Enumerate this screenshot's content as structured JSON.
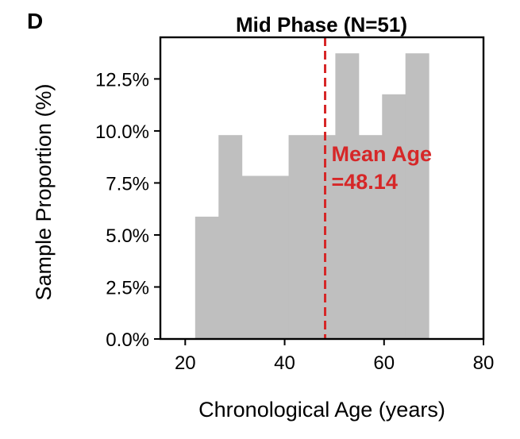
{
  "panel_label": "D",
  "chart_data": {
    "type": "histogram",
    "title": "Mid Phase (N=51)",
    "xlabel": "Chronological Age (years)",
    "ylabel": "Sample Proportion (%)",
    "xlim": [
      15,
      80
    ],
    "ylim": [
      0,
      14.5
    ],
    "x_ticks": [
      20,
      40,
      60,
      80
    ],
    "x_tick_labels": [
      "20",
      "40",
      "60",
      "80"
    ],
    "y_ticks": [
      0,
      2.5,
      5,
      7.5,
      10,
      12.5
    ],
    "y_tick_labels": [
      "0.0%",
      "2.5%",
      "5.0%",
      "7.5%",
      "10.0%",
      "12.5%"
    ],
    "bins": [
      {
        "x0": 22.0,
        "x1": 26.7,
        "value": 5.88
      },
      {
        "x0": 26.7,
        "x1": 31.4,
        "value": 9.8
      },
      {
        "x0": 31.4,
        "x1": 36.1,
        "value": 7.84
      },
      {
        "x0": 36.1,
        "x1": 40.8,
        "value": 7.84
      },
      {
        "x0": 40.8,
        "x1": 45.5,
        "value": 9.8
      },
      {
        "x0": 45.5,
        "x1": 50.2,
        "value": 9.8
      },
      {
        "x0": 50.2,
        "x1": 54.9,
        "value": 13.73
      },
      {
        "x0": 54.9,
        "x1": 59.6,
        "value": 9.8
      },
      {
        "x0": 59.6,
        "x1": 64.3,
        "value": 11.76
      },
      {
        "x0": 64.3,
        "x1": 69.0,
        "value": 13.73
      }
    ],
    "mean_line": {
      "x": 48.14,
      "label_line1": "Mean Age",
      "label_line2": "=48.14"
    },
    "colors": {
      "bar": "#bfbfbf",
      "mean": "#d62728",
      "axis": "#000000"
    },
    "grid": false
  }
}
